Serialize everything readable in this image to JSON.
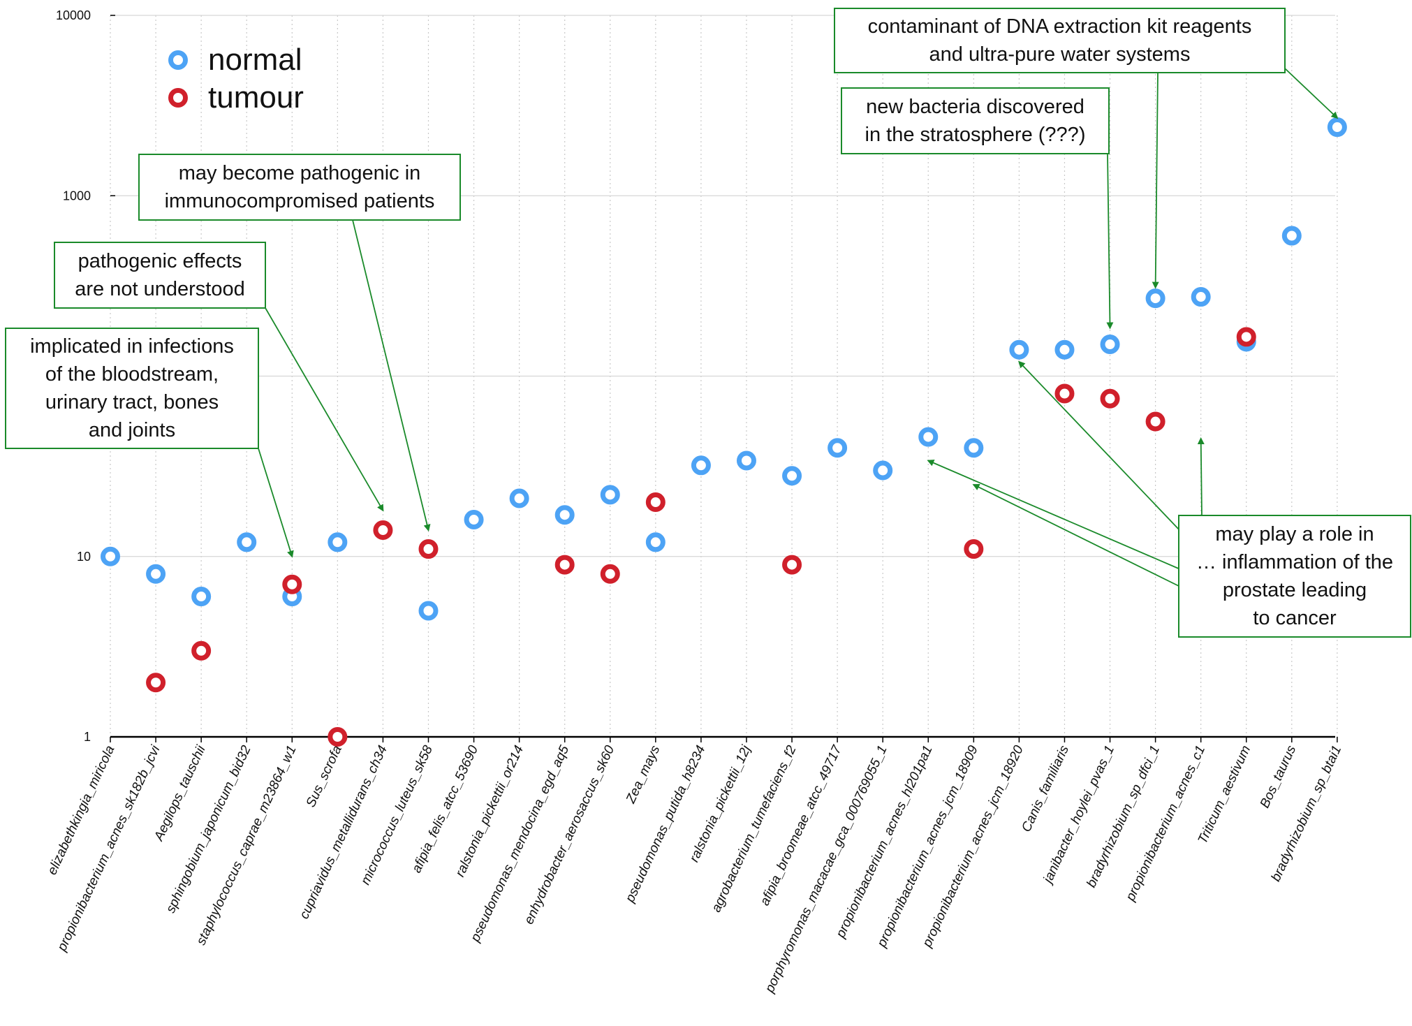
{
  "chart_data": {
    "type": "scatter",
    "y_scale": "log",
    "ylim": [
      1,
      10000
    ],
    "y_ticks": [
      "1",
      "10",
      "1000",
      "10000"
    ],
    "grid": true,
    "legend_position": "top-left",
    "categories": [
      "elizabethkingia_miricola",
      "propionibacterium_acnes_sk182b_jcvi",
      "Aegilops_tauschii",
      "sphingobium_japonicum_bid32",
      "staphylococcus_caprae_m23864_w1",
      "Sus_scrofa",
      "cupriavidus_metallidurans_ch34",
      "micrococcus_luteus_sk58",
      "afipia_felis_atcc_53690",
      "ralstonia_pickettii_or214",
      "pseudomonas_mendocina_egd_aq5",
      "enhydrobacter_aerosaccus_sk60",
      "Zea_mays",
      "pseudomonas_putida_h8234",
      "ralstonia_pickettii_12j",
      "agrobacterium_tumefaciens_f2",
      "afipia_broomeae_atcc_49717",
      "porphyromonas_macacae_gca_000769055_1",
      "propionibacterium_acnes_hl201pa1",
      "propionibacterium_acnes_jcm_18909",
      "propionibacterium_acnes_jcm_18920",
      "Canis_familiaris",
      "janibacter_hoylei_pvas_1",
      "bradyrhizobium_sp_dfci_1",
      "propionibacterium_acnes_c1",
      "Triticum_aestivum",
      "Bos_taurus",
      "bradyrhizobium_sp_btai1"
    ],
    "series": [
      {
        "name": "normal",
        "color": "#4da3f5",
        "values": [
          10,
          8,
          6,
          12,
          6,
          12,
          null,
          5,
          16,
          21,
          17,
          22,
          12,
          32,
          34,
          28,
          40,
          30,
          46,
          40,
          140,
          140,
          150,
          270,
          275,
          155,
          600,
          2400
        ]
      },
      {
        "name": "tumour",
        "color": "#d0202b",
        "values": [
          null,
          2,
          3,
          null,
          7,
          1,
          14,
          11,
          null,
          null,
          9,
          8,
          20,
          null,
          null,
          9,
          null,
          null,
          null,
          11,
          null,
          80,
          75,
          56,
          null,
          165,
          null,
          null
        ]
      }
    ],
    "annotations": [
      {
        "id": "bloodstream",
        "lines": [
          "implicated in infections",
          "of the bloodstream,",
          "urinary tract, bones",
          "and joints"
        ],
        "targets": [
          {
            "category": 4,
            "value": 10
          }
        ]
      },
      {
        "id": "pathogenic-effects",
        "lines": [
          "pathogenic effects",
          "are not understood"
        ],
        "targets": [
          {
            "category": 6,
            "value": 18
          }
        ]
      },
      {
        "id": "immunocompromised",
        "lines": [
          "may become pathogenic in",
          "immunocompromised patients"
        ],
        "targets": [
          {
            "category": 7,
            "value": 14
          }
        ]
      },
      {
        "id": "stratosphere",
        "lines": [
          "new bacteria discovered",
          "in the stratosphere (???)"
        ],
        "targets": [
          {
            "category": 22,
            "value": 185
          }
        ]
      },
      {
        "id": "contaminant",
        "lines": [
          "contaminant of DNA extraction kit reagents",
          "and ultra-pure water systems"
        ],
        "targets": [
          {
            "category": 23,
            "value": 310
          },
          {
            "category": 27,
            "value": 2700
          }
        ]
      },
      {
        "id": "prostate",
        "lines": [
          "may play a role in",
          "… inflammation of the",
          "prostate leading",
          "to cancer"
        ],
        "targets": [
          {
            "category": 18,
            "value": 34
          },
          {
            "category": 19,
            "value": 25
          },
          {
            "category": 20,
            "value": 120
          },
          {
            "category": 24,
            "value": 45
          }
        ]
      }
    ],
    "legend": [
      {
        "label": "normal",
        "color": "#4da3f5"
      },
      {
        "label": "tumour",
        "color": "#d0202b"
      }
    ]
  },
  "colors": {
    "annotation_border": "#1a8a2a",
    "arrow": "#1a8a2a",
    "axis": "#000000",
    "grid": "#c8c8c8",
    "text": "#111111"
  }
}
